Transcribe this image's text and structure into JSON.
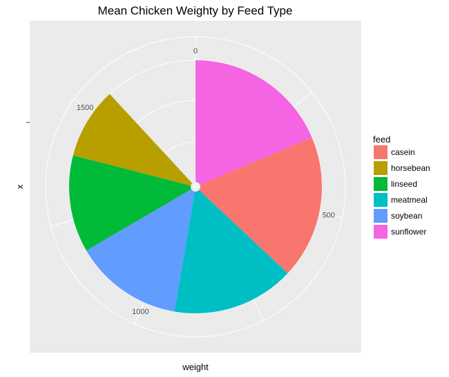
{
  "chart_data": {
    "type": "pie",
    "title": "Mean Chicken Weighty by Feed Type",
    "xlabel": "weight",
    "ylabel": "x",
    "legend": {
      "title": "feed",
      "position": "right"
    },
    "theta_axis": {
      "ticks": [
        0,
        500,
        1000,
        1500
      ],
      "labels": [
        "0",
        "500",
        "1000",
        "1500"
      ],
      "max": 1766
    },
    "categories": [
      "sunflower",
      "casein",
      "meatmeal",
      "soybean",
      "linseed",
      "horsebean"
    ],
    "values": [
      329,
      324,
      277,
      246,
      219,
      161
    ],
    "colors": {
      "casein": "#F8766D",
      "horsebean": "#B79F00",
      "linseed": "#00BA38",
      "meatmeal": "#00BFC4",
      "soybean": "#619CFF",
      "sunflower": "#F564E3"
    },
    "legend_order": [
      "casein",
      "horsebean",
      "linseed",
      "meatmeal",
      "soybean",
      "sunflower"
    ],
    "panel_background": "#EBEBEB",
    "grid_color": "#FFFFFF"
  }
}
